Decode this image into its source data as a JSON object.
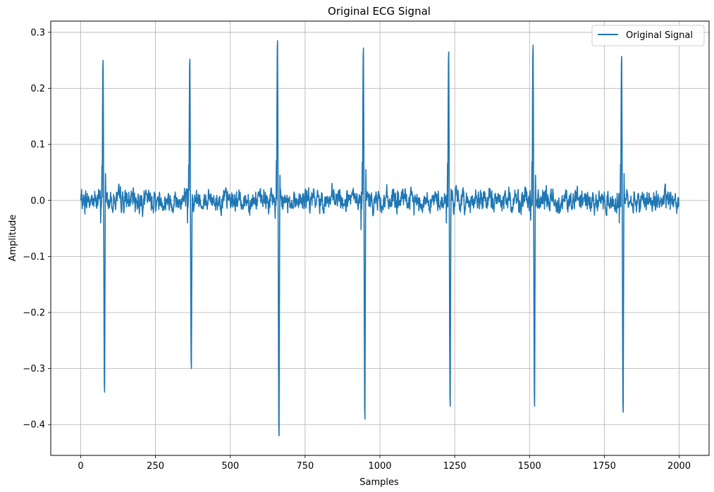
{
  "chart_data": {
    "type": "line",
    "title": "Original ECG Signal",
    "xlabel": "Samples",
    "ylabel": "Amplitude",
    "xlim": [
      -100,
      2100
    ],
    "ylim": [
      -0.455,
      0.32
    ],
    "x_ticks": [
      0,
      250,
      500,
      750,
      1000,
      1250,
      1500,
      1750,
      2000
    ],
    "x_tick_labels": [
      "0",
      "250",
      "500",
      "750",
      "1000",
      "1250",
      "1500",
      "1750",
      "2000"
    ],
    "y_ticks": [
      -0.4,
      -0.3,
      -0.2,
      -0.1,
      0.0,
      0.1,
      0.2,
      0.3
    ],
    "y_tick_labels": [
      "−0.4",
      "−0.3",
      "−0.2",
      "−0.1",
      "0.0",
      "0.1",
      "0.2",
      "0.3"
    ],
    "grid": true,
    "legend_position": "top-right",
    "line_color": "#1f77b4",
    "series": [
      {
        "name": "Original Signal",
        "samples": 2000,
        "noise_band": [
          -0.02,
          0.02
        ],
        "beats": [
          {
            "x": 75,
            "peak": 0.25,
            "trough": -0.342,
            "pre_dip": -0.04,
            "post_bump": 0.048
          },
          {
            "x": 365,
            "peak": 0.252,
            "trough": -0.3,
            "pre_dip": -0.04,
            "post_bump": 0.01
          },
          {
            "x": 658,
            "peak": 0.285,
            "trough": -0.42,
            "pre_dip": -0.032,
            "post_bump": 0.045
          },
          {
            "x": 945,
            "peak": 0.272,
            "trough": -0.39,
            "pre_dip": -0.052,
            "post_bump": 0.055
          },
          {
            "x": 1230,
            "peak": 0.265,
            "trough": -0.367,
            "pre_dip": -0.04,
            "post_bump": 0.02
          },
          {
            "x": 1512,
            "peak": 0.277,
            "trough": -0.367,
            "pre_dip": -0.035,
            "post_bump": 0.045
          },
          {
            "x": 1808,
            "peak": 0.257,
            "trough": -0.378,
            "pre_dip": -0.04,
            "post_bump": 0.048
          }
        ]
      }
    ]
  }
}
